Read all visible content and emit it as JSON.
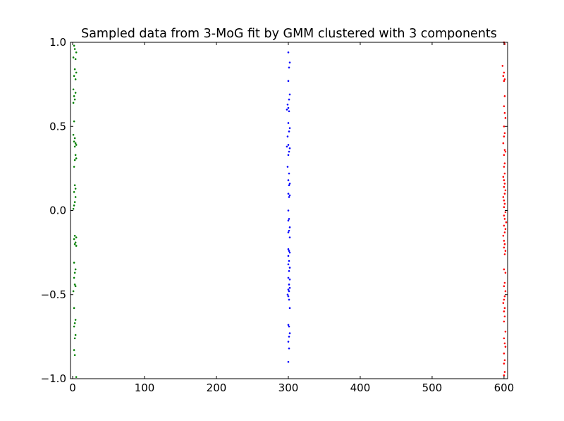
{
  "chart_data": {
    "type": "scatter",
    "title": "Sampled data from 3-MoG fit by GMM clustered with 3 components",
    "xlabel": "",
    "ylabel": "",
    "xlim": [
      -3,
      605
    ],
    "ylim": [
      -1.0,
      1.0
    ],
    "xticks": [
      0,
      100,
      200,
      300,
      400,
      500,
      600
    ],
    "xtick_labels": [
      "0",
      "100",
      "200",
      "300",
      "400",
      "500",
      "600"
    ],
    "yticks": [
      -1.0,
      -0.5,
      0.0,
      0.5,
      1.0
    ],
    "ytick_labels": [
      "−1.0",
      "−0.5",
      "0.0",
      "0.5",
      "1.0"
    ],
    "grid": false,
    "series": [
      {
        "color": "#008000",
        "points": [
          [
            2,
            0.98
          ],
          [
            3,
            0.96
          ],
          [
            5,
            0.94
          ],
          [
            1,
            0.91
          ],
          [
            4,
            0.9
          ],
          [
            3,
            0.84
          ],
          [
            5,
            0.82
          ],
          [
            2,
            0.8
          ],
          [
            4,
            0.78
          ],
          [
            1,
            0.72
          ],
          [
            4,
            0.7
          ],
          [
            2,
            0.68
          ],
          [
            3,
            0.66
          ],
          [
            1,
            0.64
          ],
          [
            2,
            0.53
          ],
          [
            1,
            0.45
          ],
          [
            3,
            0.43
          ],
          [
            2,
            0.41
          ],
          [
            4,
            0.4
          ],
          [
            5,
            0.39
          ],
          [
            3,
            0.38
          ],
          [
            4,
            0.33
          ],
          [
            5,
            0.31
          ],
          [
            3,
            0.3
          ],
          [
            2,
            0.26
          ],
          [
            3,
            0.15
          ],
          [
            4,
            0.13
          ],
          [
            2,
            0.11
          ],
          [
            4,
            0.08
          ],
          [
            3,
            0.05
          ],
          [
            2,
            0.03
          ],
          [
            1,
            0.01
          ],
          [
            3,
            -0.15
          ],
          [
            5,
            -0.16
          ],
          [
            2,
            -0.17
          ],
          [
            4,
            -0.19
          ],
          [
            3,
            -0.2
          ],
          [
            5,
            -0.21
          ],
          [
            2,
            -0.31
          ],
          [
            4,
            -0.35
          ],
          [
            3,
            -0.37
          ],
          [
            2,
            -0.4
          ],
          [
            3,
            -0.44
          ],
          [
            4,
            -0.45
          ],
          [
            1,
            -0.48
          ],
          [
            2,
            -0.58
          ],
          [
            4,
            -0.65
          ],
          [
            3,
            -0.67
          ],
          [
            2,
            -0.69
          ],
          [
            4,
            -0.74
          ],
          [
            3,
            -0.76
          ],
          [
            2,
            -0.83
          ],
          [
            3,
            -0.86
          ],
          [
            5,
            -0.99
          ]
        ]
      },
      {
        "color": "#0000ff",
        "points": [
          [
            300,
            0.94
          ],
          [
            302,
            0.88
          ],
          [
            301,
            0.85
          ],
          [
            300,
            0.77
          ],
          [
            302,
            0.69
          ],
          [
            301,
            0.66
          ],
          [
            299,
            0.63
          ],
          [
            300,
            0.61
          ],
          [
            298,
            0.6
          ],
          [
            301,
            0.59
          ],
          [
            300,
            0.52
          ],
          [
            302,
            0.49
          ],
          [
            301,
            0.47
          ],
          [
            299,
            0.44
          ],
          [
            300,
            0.39
          ],
          [
            298,
            0.38
          ],
          [
            302,
            0.37
          ],
          [
            301,
            0.35
          ],
          [
            300,
            0.33
          ],
          [
            299,
            0.26
          ],
          [
            301,
            0.22
          ],
          [
            300,
            0.18
          ],
          [
            302,
            0.16
          ],
          [
            301,
            0.15
          ],
          [
            300,
            0.1
          ],
          [
            302,
            0.09
          ],
          [
            301,
            0.08
          ],
          [
            300,
            0.0
          ],
          [
            301,
            -0.05
          ],
          [
            300,
            -0.06
          ],
          [
            302,
            -0.1
          ],
          [
            301,
            -0.12
          ],
          [
            300,
            -0.13
          ],
          [
            302,
            -0.16
          ],
          [
            300,
            -0.23
          ],
          [
            301,
            -0.24
          ],
          [
            302,
            -0.25
          ],
          [
            300,
            -0.27
          ],
          [
            301,
            -0.3
          ],
          [
            300,
            -0.32
          ],
          [
            302,
            -0.34
          ],
          [
            301,
            -0.36
          ],
          [
            300,
            -0.4
          ],
          [
            302,
            -0.41
          ],
          [
            301,
            -0.44
          ],
          [
            302,
            -0.46
          ],
          [
            300,
            -0.47
          ],
          [
            301,
            -0.48
          ],
          [
            299,
            -0.5
          ],
          [
            300,
            -0.51
          ],
          [
            301,
            -0.53
          ],
          [
            302,
            -0.58
          ],
          [
            300,
            -0.68
          ],
          [
            301,
            -0.69
          ],
          [
            302,
            -0.73
          ],
          [
            301,
            -0.75
          ],
          [
            300,
            -0.78
          ],
          [
            301,
            -0.82
          ],
          [
            300,
            -0.9
          ]
        ]
      },
      {
        "color": "#ff0000",
        "points": [
          [
            600,
            1.0
          ],
          [
            601,
            0.99
          ],
          [
            598,
            0.86
          ],
          [
            600,
            0.82
          ],
          [
            599,
            0.8
          ],
          [
            601,
            0.78
          ],
          [
            600,
            0.77
          ],
          [
            601,
            0.68
          ],
          [
            600,
            0.62
          ],
          [
            601,
            0.58
          ],
          [
            602,
            0.55
          ],
          [
            600,
            0.5
          ],
          [
            601,
            0.46
          ],
          [
            600,
            0.44
          ],
          [
            599,
            0.4
          ],
          [
            601,
            0.36
          ],
          [
            602,
            0.35
          ],
          [
            600,
            0.33
          ],
          [
            601,
            0.28
          ],
          [
            600,
            0.26
          ],
          [
            601,
            0.22
          ],
          [
            599,
            0.2
          ],
          [
            600,
            0.18
          ],
          [
            601,
            0.16
          ],
          [
            600,
            0.14
          ],
          [
            602,
            0.12
          ],
          [
            601,
            0.1
          ],
          [
            599,
            0.08
          ],
          [
            600,
            0.06
          ],
          [
            601,
            0.04
          ],
          [
            600,
            0.02
          ],
          [
            602,
            -0.01
          ],
          [
            600,
            -0.03
          ],
          [
            601,
            -0.05
          ],
          [
            603,
            -0.07
          ],
          [
            600,
            -0.09
          ],
          [
            602,
            -0.11
          ],
          [
            601,
            -0.13
          ],
          [
            599,
            -0.15
          ],
          [
            600,
            -0.18
          ],
          [
            601,
            -0.2
          ],
          [
            600,
            -0.22
          ],
          [
            602,
            -0.24
          ],
          [
            601,
            -0.26
          ],
          [
            600,
            -0.35
          ],
          [
            602,
            -0.37
          ],
          [
            601,
            -0.43
          ],
          [
            600,
            -0.45
          ],
          [
            602,
            -0.48
          ],
          [
            601,
            -0.51
          ],
          [
            600,
            -0.53
          ],
          [
            599,
            -0.55
          ],
          [
            601,
            -0.58
          ],
          [
            600,
            -0.6
          ],
          [
            601,
            -0.63
          ],
          [
            600,
            -0.66
          ],
          [
            602,
            -0.72
          ],
          [
            600,
            -0.76
          ],
          [
            601,
            -0.79
          ],
          [
            602,
            -0.81
          ],
          [
            600,
            -0.85
          ],
          [
            601,
            -0.89
          ],
          [
            600,
            -0.91
          ],
          [
            601,
            -0.96
          ],
          [
            600,
            -0.98
          ]
        ]
      }
    ]
  }
}
